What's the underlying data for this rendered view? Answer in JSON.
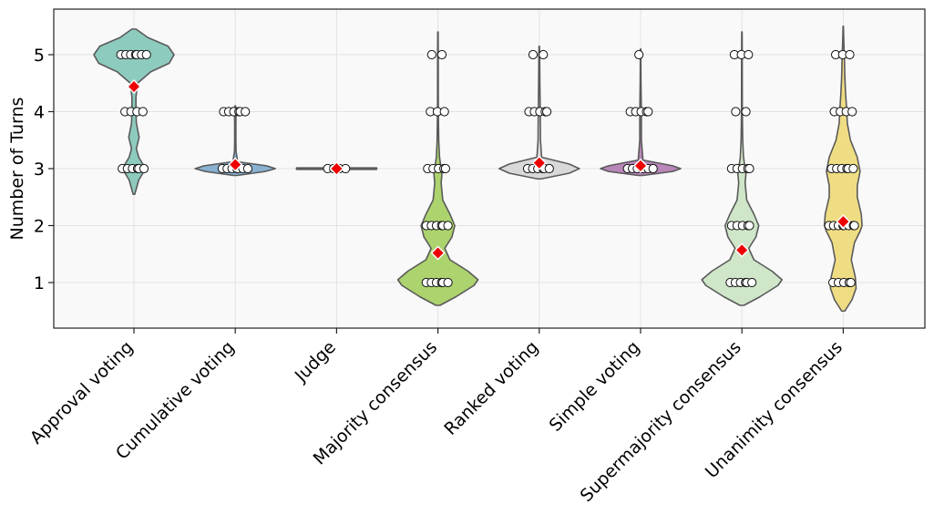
{
  "chart_data": {
    "type": "violin",
    "title": "",
    "xlabel": "",
    "ylabel": "Number of Turns",
    "ylim": [
      0.2,
      5.8
    ],
    "yticks": [
      1,
      2,
      3,
      4,
      5
    ],
    "grid": true,
    "mean_marker": "red diamond",
    "categories": [
      {
        "name": "Approval voting",
        "color": "#8dcbbe",
        "range": [
          2.55,
          5.45
        ],
        "points": [
          3,
          3,
          3,
          3,
          3,
          3,
          4,
          4,
          4,
          4,
          5,
          5,
          5,
          5,
          5,
          5,
          5
        ],
        "mean": 4.44,
        "density": [
          [
            2.55,
            0.02
          ],
          [
            2.8,
            0.12
          ],
          [
            3.0,
            0.29
          ],
          [
            3.2,
            0.12
          ],
          [
            3.35,
            0.06
          ],
          [
            3.55,
            0.13
          ],
          [
            3.8,
            0.06
          ],
          [
            4.0,
            0.05
          ],
          [
            4.25,
            0.05
          ],
          [
            4.5,
            0.09
          ],
          [
            4.7,
            0.42
          ],
          [
            4.85,
            0.88
          ],
          [
            5.0,
            1.0
          ],
          [
            5.15,
            0.85
          ],
          [
            5.3,
            0.35
          ],
          [
            5.45,
            0.05
          ]
        ]
      },
      {
        "name": "Cumulative voting",
        "color": "#89b1d1",
        "range": [
          2.88,
          4.1
        ],
        "points": [
          3,
          3,
          3,
          3,
          3,
          3,
          3,
          4,
          4,
          4,
          4,
          4,
          4
        ],
        "mean": 3.07,
        "density": [
          [
            2.88,
            0.05
          ],
          [
            2.95,
            0.75
          ],
          [
            3.0,
            1.0
          ],
          [
            3.05,
            0.78
          ],
          [
            3.12,
            0.06
          ],
          [
            3.3,
            0.02
          ],
          [
            3.5,
            0.015
          ],
          [
            3.8,
            0.015
          ],
          [
            4.0,
            0.02
          ],
          [
            4.1,
            0.01
          ]
        ]
      },
      {
        "name": "Judge",
        "color": "#d9d9d9",
        "range": [
          2.99,
          3.01
        ],
        "points": [
          3,
          3,
          3,
          3
        ],
        "mean": 3.0,
        "density": [
          [
            2.995,
            0.98
          ],
          [
            3.0,
            1.0
          ],
          [
            3.005,
            0.98
          ]
        ]
      },
      {
        "name": "Majority consensus",
        "color": "#acd36e",
        "range": [
          0.6,
          5.4
        ],
        "points": [
          1,
          1,
          1,
          1,
          1,
          1,
          2,
          2,
          2,
          2,
          2,
          2,
          3,
          3,
          3,
          3,
          3,
          4,
          4,
          4,
          5,
          5
        ],
        "mean": 1.52,
        "density": [
          [
            0.6,
            0.05
          ],
          [
            0.75,
            0.45
          ],
          [
            0.95,
            0.9
          ],
          [
            1.05,
            1.0
          ],
          [
            1.2,
            0.75
          ],
          [
            1.4,
            0.3
          ],
          [
            1.6,
            0.17
          ],
          [
            1.8,
            0.35
          ],
          [
            2.0,
            0.42
          ],
          [
            2.2,
            0.3
          ],
          [
            2.45,
            0.12
          ],
          [
            2.75,
            0.08
          ],
          [
            2.9,
            0.1
          ],
          [
            3.0,
            0.08
          ],
          [
            3.2,
            0.04
          ],
          [
            3.5,
            0.02
          ],
          [
            4.0,
            0.01
          ],
          [
            5.0,
            0.008
          ],
          [
            5.4,
            0.005
          ]
        ]
      },
      {
        "name": "Ranked voting",
        "color": "#d9d9d9",
        "range": [
          2.82,
          5.15
        ],
        "points": [
          3,
          3,
          3,
          3,
          3,
          3,
          4,
          4,
          4,
          4,
          4,
          5,
          5
        ],
        "mean": 3.1,
        "density": [
          [
            2.82,
            0.05
          ],
          [
            2.92,
            0.75
          ],
          [
            3.0,
            1.0
          ],
          [
            3.08,
            0.75
          ],
          [
            3.2,
            0.06
          ],
          [
            3.5,
            0.03
          ],
          [
            4.0,
            0.025
          ],
          [
            4.5,
            0.015
          ],
          [
            5.0,
            0.01
          ],
          [
            5.15,
            0.005
          ]
        ]
      },
      {
        "name": "Simple voting",
        "color": "#b886b9",
        "range": [
          2.88,
          5.1
        ],
        "points": [
          3,
          3,
          3,
          3,
          3,
          3,
          3,
          4,
          4,
          4,
          4,
          4,
          5
        ],
        "mean": 3.05,
        "density": [
          [
            2.88,
            0.06
          ],
          [
            2.95,
            0.8
          ],
          [
            3.0,
            1.0
          ],
          [
            3.05,
            0.8
          ],
          [
            3.15,
            0.06
          ],
          [
            3.5,
            0.02
          ],
          [
            4.0,
            0.02
          ],
          [
            4.5,
            0.01
          ],
          [
            5.1,
            0.005
          ]
        ]
      },
      {
        "name": "Supermajority consensus",
        "color": "#cfe6c9",
        "range": [
          0.6,
          5.4
        ],
        "points": [
          1,
          1,
          1,
          1,
          1,
          1,
          2,
          2,
          2,
          2,
          2,
          3,
          3,
          3,
          3,
          3,
          4,
          4,
          5,
          5,
          5
        ],
        "mean": 1.57,
        "density": [
          [
            0.6,
            0.05
          ],
          [
            0.75,
            0.45
          ],
          [
            0.95,
            0.9
          ],
          [
            1.05,
            1.0
          ],
          [
            1.2,
            0.75
          ],
          [
            1.4,
            0.3
          ],
          [
            1.6,
            0.17
          ],
          [
            1.8,
            0.35
          ],
          [
            2.0,
            0.42
          ],
          [
            2.2,
            0.3
          ],
          [
            2.45,
            0.12
          ],
          [
            2.75,
            0.08
          ],
          [
            2.9,
            0.1
          ],
          [
            3.0,
            0.08
          ],
          [
            3.2,
            0.04
          ],
          [
            3.5,
            0.02
          ],
          [
            4.0,
            0.01
          ],
          [
            5.0,
            0.008
          ],
          [
            5.4,
            0.005
          ]
        ]
      },
      {
        "name": "Unanimity consensus",
        "color": "#efdd84",
        "range": [
          0.5,
          5.5
        ],
        "points": [
          1,
          1,
          1,
          1,
          1,
          2,
          2,
          2,
          2,
          2,
          2,
          2,
          2,
          3,
          3,
          3,
          3,
          3,
          3,
          4,
          4,
          4,
          4,
          5,
          5,
          5
        ],
        "mean": 2.07,
        "density": [
          [
            0.5,
            0.04
          ],
          [
            0.7,
            0.22
          ],
          [
            0.9,
            0.32
          ],
          [
            1.1,
            0.3
          ],
          [
            1.4,
            0.2
          ],
          [
            1.7,
            0.28
          ],
          [
            1.9,
            0.42
          ],
          [
            2.0,
            0.47
          ],
          [
            2.2,
            0.45
          ],
          [
            2.5,
            0.35
          ],
          [
            2.7,
            0.35
          ],
          [
            2.95,
            0.42
          ],
          [
            3.2,
            0.35
          ],
          [
            3.5,
            0.18
          ],
          [
            3.8,
            0.1
          ],
          [
            4.0,
            0.09
          ],
          [
            4.3,
            0.06
          ],
          [
            4.6,
            0.04
          ],
          [
            4.9,
            0.03
          ],
          [
            5.2,
            0.015
          ],
          [
            5.5,
            0.004
          ]
        ]
      }
    ]
  }
}
